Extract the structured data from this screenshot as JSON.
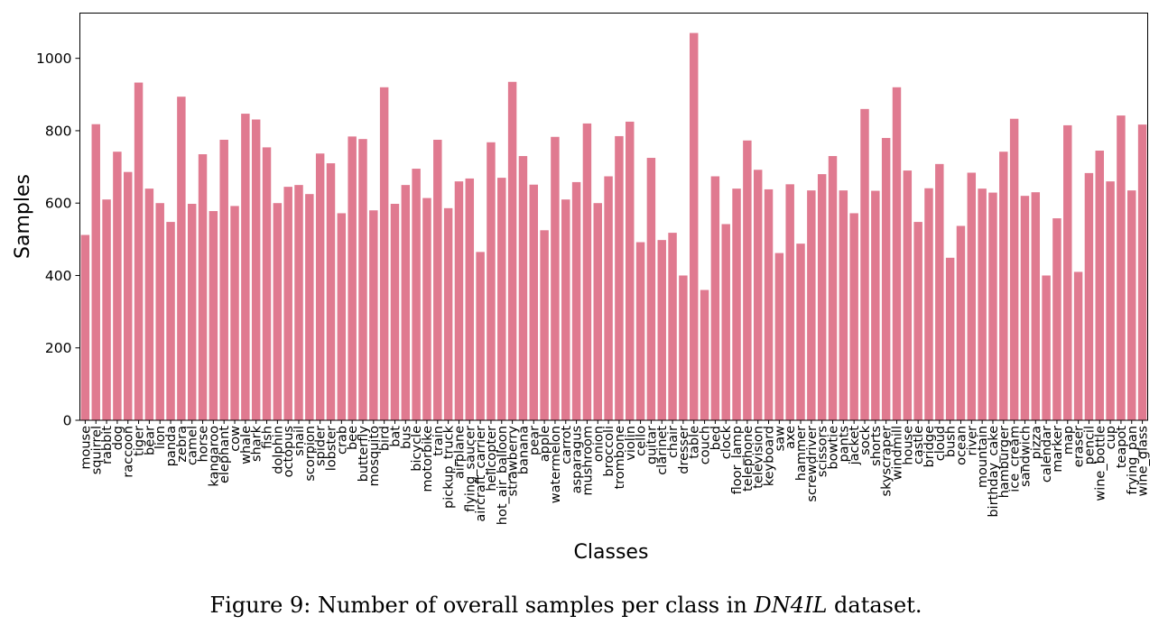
{
  "chart_data": {
    "type": "bar",
    "xlabel": "Classes",
    "ylabel": "Samples",
    "ylim": [
      0,
      1125
    ],
    "yticks": [
      0,
      200,
      400,
      600,
      800,
      1000
    ],
    "bar_color": "#e07a90",
    "grid": false,
    "categories": [
      "mouse",
      "squirrel",
      "rabbit",
      "dog",
      "raccoon",
      "tiger",
      "bear",
      "lion",
      "panda",
      "zebra",
      "camel",
      "horse",
      "kangaroo",
      "elephant",
      "cow",
      "whale",
      "shark",
      "fish",
      "dolphin",
      "octopus",
      "snail",
      "scorpion",
      "spider",
      "lobster",
      "crab",
      "bee",
      "butterfly",
      "mosquito",
      "bird",
      "bat",
      "bus",
      "bicycle",
      "motorbike",
      "train",
      "pickup_truck",
      "airplane",
      "flying_saucer",
      "aircraft_carrier",
      "helicopter",
      "hot_air_balloon",
      "strawberry",
      "banana",
      "pear",
      "apple",
      "watermelon",
      "carrot",
      "asparagus",
      "mushroom",
      "onion",
      "broccoli",
      "trombone",
      "violin",
      "cello",
      "guitar",
      "clarinet",
      "chair",
      "dresser",
      "table",
      "couch",
      "bed",
      "clock",
      "floor_lamp",
      "telephone",
      "television",
      "keyboard",
      "saw",
      "axe",
      "hammer",
      "screwdriver",
      "scissors",
      "bowtie",
      "pants",
      "jacket",
      "sock",
      "shorts",
      "skyscraper",
      "windmill",
      "house",
      "castle",
      "bridge",
      "cloud",
      "bush",
      "ocean",
      "river",
      "mountain",
      "birthday_cake",
      "hamburger",
      "ice_cream",
      "sandwich",
      "pizza",
      "calendar",
      "marker",
      "map",
      "eraser",
      "pencil",
      "wine_bottle",
      "cup",
      "teapot",
      "frying_pan",
      "wine_glass"
    ],
    "values": [
      512,
      818,
      610,
      742,
      686,
      933,
      640,
      600,
      548,
      894,
      598,
      735,
      578,
      775,
      592,
      847,
      831,
      754,
      600,
      645,
      650,
      625,
      737,
      710,
      572,
      784,
      777,
      580,
      920,
      598,
      650,
      695,
      614,
      775,
      586,
      660,
      668,
      465,
      768,
      670,
      935,
      730,
      651,
      525,
      783,
      610,
      658,
      820,
      600,
      674,
      785,
      825,
      492,
      725,
      498,
      518,
      400,
      1070,
      360,
      674,
      542,
      640,
      773,
      692,
      638,
      462,
      652,
      488,
      635,
      680,
      730,
      635,
      572,
      860,
      634,
      780,
      920,
      690,
      548,
      641,
      708,
      449,
      537,
      684,
      640,
      629,
      742,
      833,
      620,
      630,
      400,
      558,
      815,
      410,
      683,
      745,
      660,
      842,
      635,
      817
    ]
  },
  "caption": {
    "prefix": "Figure 9: Number of overall samples per class in ",
    "dataset": "DN4IL",
    "suffix": " dataset."
  }
}
